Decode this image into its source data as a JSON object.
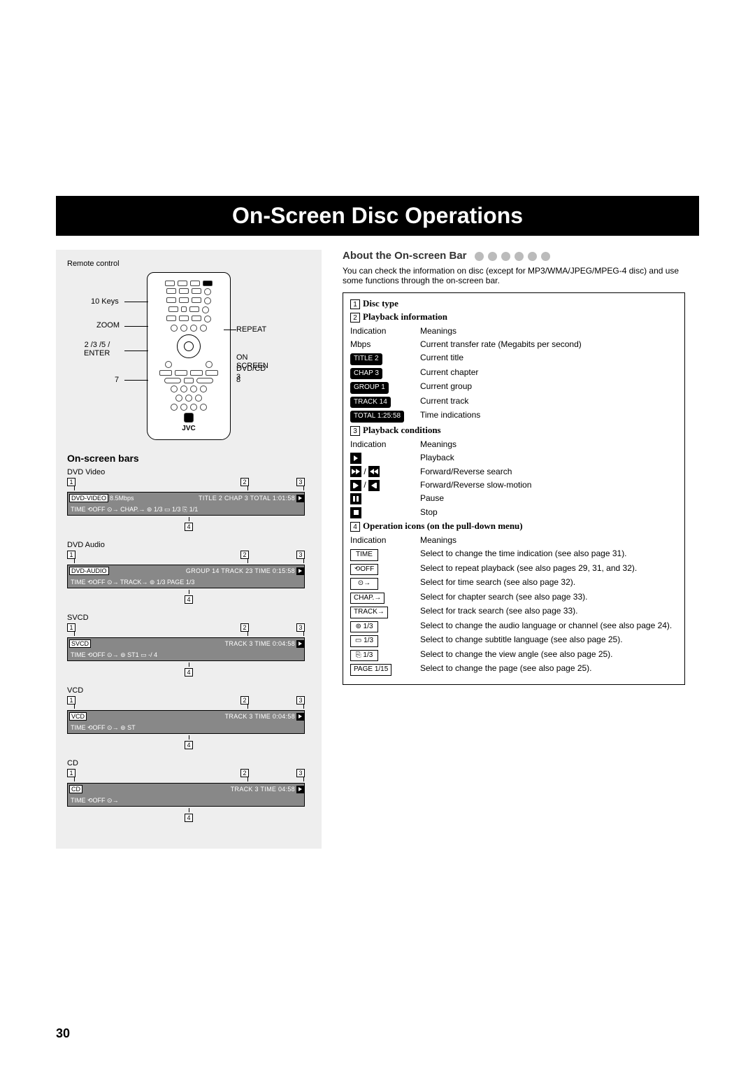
{
  "page": {
    "title": "On-Screen Disc Operations",
    "number": "30"
  },
  "remote": {
    "caption": "Remote control",
    "labels": {
      "tenkeys": "10 Keys",
      "zoom": "ZOOM",
      "enter": "2 /3 /5 /\nENTER",
      "seven": "7",
      "repeat": "REPEAT",
      "onscreen": "ON SCREEN",
      "dvdcd3": "DVD/CD 3",
      "eight": "8"
    },
    "brand": "JVC"
  },
  "bars": {
    "heading": "On-screen bars",
    "items": [
      {
        "label": "DVD Video",
        "top_left": "DVD-VIDEO",
        "top_mid": "8.5Mbps",
        "top_right": "TITLE 2  CHAP 3  TOTAL  1:01:58",
        "bot": "TIME   ⟲OFF   ⊙→  CHAP.→  ⊚ 1/3   ▭ 1/3   ⎘ 1/1"
      },
      {
        "label": "DVD Audio",
        "top_left": "DVD-AUDIO",
        "top_mid": "",
        "top_right": "GROUP 14  TRACK 23  TIME   0:15:58",
        "bot": "TIME   ⟲OFF   ⊙→  TRACK→  ⊚  1/3  PAGE  1/3"
      },
      {
        "label": "SVCD",
        "top_left": "SVCD",
        "top_mid": "",
        "top_right": "TRACK 3  TIME   0:04:58",
        "bot": "TIME   ⟲OFF   ⊙→  ⊚ ST1  ▭ -/ 4"
      },
      {
        "label": "VCD",
        "top_left": "VCD",
        "top_mid": "",
        "top_right": "TRACK 3  TIME   0:04:58",
        "bot": "TIME   ⟲OFF   ⊙→  ⊚ ST"
      },
      {
        "label": "CD",
        "top_left": "CD",
        "top_mid": "",
        "top_right": "TRACK 3  TIME   04:58",
        "bot": "TIME   ⟲OFF   ⊙→"
      }
    ],
    "markers": [
      "1",
      "2",
      "3",
      "4"
    ]
  },
  "about": {
    "heading": "About the On-screen Bar",
    "intro": "You can check the information on disc (except for MP3/WMA/JPEG/MPEG-4 disc) and use some functions through the on-screen bar.",
    "s1": "Disc type",
    "s2": "Playback information",
    "s2rows": [
      {
        "ind": "Indication",
        "mean": "Meanings",
        "plain": true
      },
      {
        "ind": "Mbps",
        "mean": "Current transfer rate (Megabits per second)",
        "plain": true
      },
      {
        "ind": "TITLE  2",
        "mean": "Current title"
      },
      {
        "ind": "CHAP  3",
        "mean": "Current chapter"
      },
      {
        "ind": "GROUP 1",
        "mean": "Current group"
      },
      {
        "ind": "TRACK 14",
        "mean": "Current track"
      },
      {
        "ind": "TOTAL 1:25:58",
        "mean": "Time indications"
      }
    ],
    "s3": "Playback conditions",
    "s3rows": [
      {
        "ind": "Indication",
        "mean": "Meanings",
        "plain": true
      },
      {
        "icon": "play",
        "mean": "Playback"
      },
      {
        "icon": "ffrw",
        "mean": "Forward/Reverse search"
      },
      {
        "icon": "slow",
        "mean": "Forward/Reverse slow-motion"
      },
      {
        "icon": "pause",
        "mean": "Pause"
      },
      {
        "icon": "stop",
        "mean": "Stop"
      }
    ],
    "s4": "Operation icons (on the pull-down menu)",
    "s4rows": [
      {
        "ind": "Indication",
        "mean": "Meanings",
        "plain": true
      },
      {
        "box": "TIME",
        "mean": "Select to change the time indication (see also page 31)."
      },
      {
        "box": "⟲OFF",
        "mean": "Select to repeat playback (see also pages 29, 31, and 32)."
      },
      {
        "box": "⊙→",
        "mean": "Select for time search (see also page 32)."
      },
      {
        "box": "CHAP.→",
        "mean": "Select for chapter search (see also page 33)."
      },
      {
        "box": "TRACK→",
        "mean": "Select for track search (see also page 33)."
      },
      {
        "box": "⊚  1/3",
        "mean": "Select to change the audio language or channel (see also page 24)."
      },
      {
        "box": "▭  1/3",
        "mean": "Select to change subtitle language (see also page 25)."
      },
      {
        "box": "⎘ 1/3",
        "mean": "Select to change the view angle (see also page 25)."
      },
      {
        "box": "PAGE 1/15",
        "mean": "Select to change the page (see also page 25)."
      }
    ]
  }
}
